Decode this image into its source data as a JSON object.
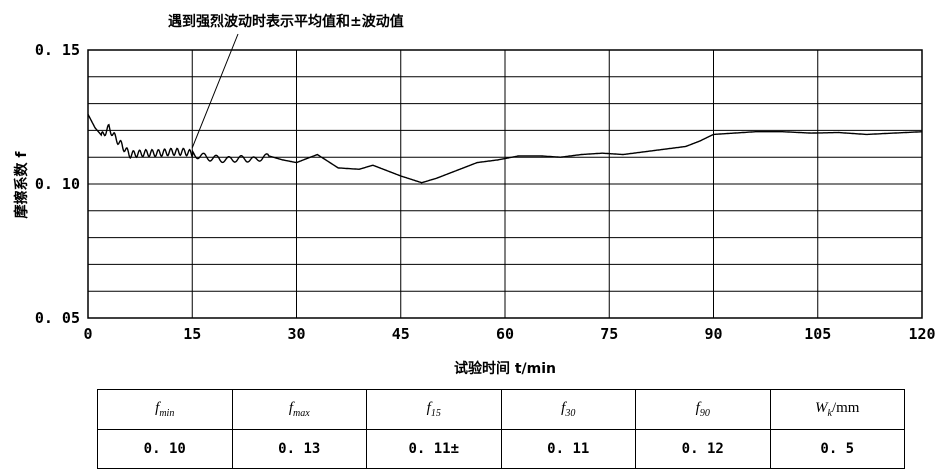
{
  "chart_data": {
    "type": "line",
    "annotation": "遇到强烈波动时表示平均值和±波动值",
    "ylabel": "摩擦系数 f",
    "xlabel": "试验时间 t/min",
    "xlim": [
      0,
      120
    ],
    "ylim": [
      0.05,
      0.15
    ],
    "x_ticks": [
      0,
      15,
      30,
      45,
      60,
      75,
      90,
      105,
      120
    ],
    "y_ticks": [
      "0.15",
      "0.10",
      "0.05"
    ],
    "grid": true,
    "series": [
      {
        "x": [
          0,
          1,
          2,
          3,
          4,
          5,
          6,
          8,
          10,
          12,
          14,
          15,
          17,
          20,
          22,
          24,
          26,
          28,
          30,
          33,
          36,
          39,
          41,
          43,
          45,
          48,
          50,
          53,
          56,
          59,
          62,
          65,
          68,
          71,
          74,
          77,
          80,
          83,
          86,
          88,
          90,
          93,
          96,
          100,
          104,
          108,
          112,
          116,
          120
        ],
        "y": [
          0.126,
          0.121,
          0.118,
          0.121,
          0.117,
          0.114,
          0.111,
          0.1115,
          0.1115,
          0.112,
          0.112,
          0.1112,
          0.11,
          0.109,
          0.1095,
          0.109,
          0.1105,
          0.109,
          0.108,
          0.111,
          0.106,
          0.1055,
          0.107,
          0.105,
          0.103,
          0.1005,
          0.102,
          0.105,
          0.108,
          0.109,
          0.1105,
          0.1105,
          0.11,
          0.111,
          0.1115,
          0.111,
          0.112,
          0.113,
          0.114,
          0.116,
          0.1185,
          0.119,
          0.1195,
          0.1195,
          0.119,
          0.1192,
          0.1185,
          0.119,
          0.1195
        ]
      }
    ]
  },
  "table": {
    "headers": [
      {
        "sym": "f",
        "sub": "min",
        "unit": ""
      },
      {
        "sym": "f",
        "sub": "max",
        "unit": ""
      },
      {
        "sym": "f",
        "sub": "15",
        "unit": ""
      },
      {
        "sym": "f",
        "sub": "30",
        "unit": ""
      },
      {
        "sym": "f",
        "sub": "90",
        "unit": ""
      },
      {
        "sym": "W",
        "sub": "k",
        "unit": "/mm"
      }
    ],
    "values": [
      "0. 10",
      "0. 13",
      "0. 11±",
      "0. 11",
      "0. 12",
      "0. 5"
    ]
  }
}
